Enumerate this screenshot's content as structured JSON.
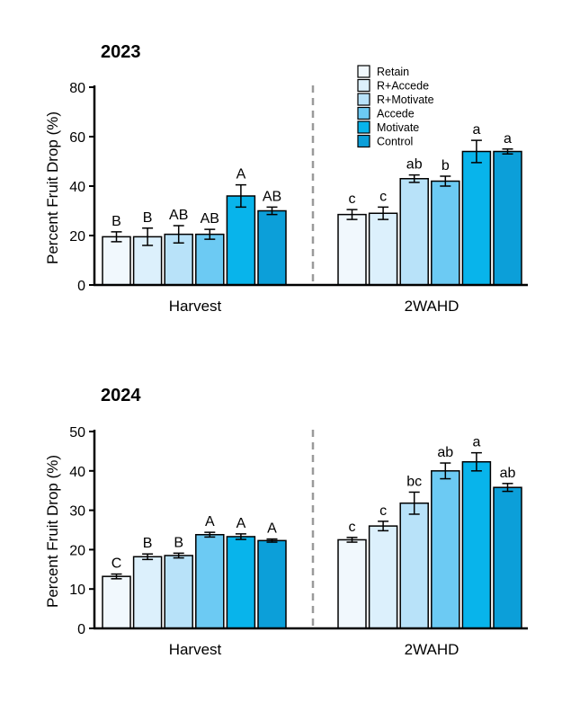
{
  "chart_data": [
    {
      "type": "bar",
      "title": "2023",
      "ylabel": "Percent Fruit Drop (%)",
      "ylim": [
        0,
        80
      ],
      "yticks": [
        "0",
        "20",
        "40",
        "60",
        "80"
      ],
      "groups": [
        "Harvest",
        "2WAHD"
      ],
      "legend": [
        "Retain",
        "R+Accede",
        "R+Motivate",
        "Accede",
        "Motivate",
        "Control"
      ],
      "colors": [
        "#f1f8fd",
        "#dcf0fc",
        "#b8e2f9",
        "#6ccaf3",
        "#08b4eb",
        "#0c9fd9"
      ],
      "series": [
        {
          "name": "Retain",
          "values": [
            19.5,
            28.5
          ],
          "errors": [
            2.0,
            2.0
          ],
          "labels": [
            "B",
            "c"
          ]
        },
        {
          "name": "R+Accede",
          "values": [
            19.5,
            29
          ],
          "errors": [
            3.5,
            2.5
          ],
          "labels": [
            "B",
            "c"
          ]
        },
        {
          "name": "R+Motivate",
          "values": [
            20.5,
            43
          ],
          "errors": [
            3.5,
            1.5
          ],
          "labels": [
            "AB",
            "ab"
          ]
        },
        {
          "name": "Accede",
          "values": [
            20.5,
            42
          ],
          "errors": [
            2.0,
            2.0
          ],
          "labels": [
            "AB",
            "b"
          ]
        },
        {
          "name": "Motivate",
          "values": [
            36,
            54
          ],
          "errors": [
            4.5,
            4.5
          ],
          "labels": [
            "A",
            "a"
          ]
        },
        {
          "name": "Control",
          "values": [
            30,
            54
          ],
          "errors": [
            1.5,
            1.0
          ],
          "labels": [
            "AB",
            "a"
          ]
        }
      ]
    },
    {
      "type": "bar",
      "title": "2024",
      "ylabel": "Percent Fruit Drop (%)",
      "ylim": [
        0,
        50
      ],
      "yticks": [
        "0",
        "10",
        "20",
        "30",
        "40",
        "50"
      ],
      "groups": [
        "Harvest",
        "2WAHD"
      ],
      "colors": [
        "#f1f8fd",
        "#dcf0fc",
        "#b8e2f9",
        "#6ccaf3",
        "#08b4eb",
        "#0c9fd9"
      ],
      "series": [
        {
          "name": "Retain",
          "values": [
            13.2,
            22.5
          ],
          "errors": [
            0.6,
            0.6
          ],
          "labels": [
            "C",
            "c"
          ]
        },
        {
          "name": "R+Accede",
          "values": [
            18.2,
            26
          ],
          "errors": [
            0.7,
            1.2
          ],
          "labels": [
            "B",
            "c"
          ]
        },
        {
          "name": "R+Motivate",
          "values": [
            18.5,
            31.8
          ],
          "errors": [
            0.6,
            2.8
          ],
          "labels": [
            "B",
            "bc"
          ]
        },
        {
          "name": "Accede",
          "values": [
            23.8,
            40
          ],
          "errors": [
            0.6,
            2.0
          ],
          "labels": [
            "A",
            "ab"
          ]
        },
        {
          "name": "Motivate",
          "values": [
            23.3,
            42.3
          ],
          "errors": [
            0.7,
            2.3
          ],
          "labels": [
            "A",
            "a"
          ]
        },
        {
          "name": "Control",
          "values": [
            22.3,
            35.8
          ],
          "errors": [
            0.4,
            1.0
          ],
          "labels": [
            "A",
            "ab"
          ]
        }
      ]
    }
  ]
}
